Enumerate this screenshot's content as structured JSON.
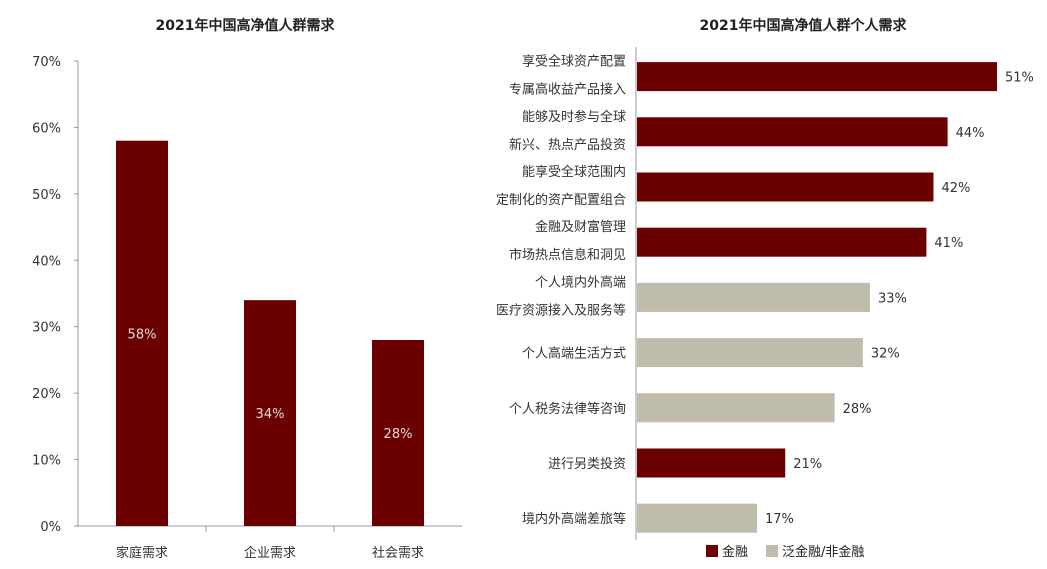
{
  "chart_data": [
    {
      "type": "bar",
      "title": "2021年中国高净值人群需求",
      "categories": [
        "家庭需求",
        "企业需求",
        "社会需求"
      ],
      "values": [
        58,
        34,
        28
      ],
      "value_labels": [
        "58%",
        "34%",
        "28%"
      ],
      "ylim": [
        0,
        70
      ],
      "yticks": [
        "0%",
        "10%",
        "20%",
        "30%",
        "40%",
        "50%",
        "60%",
        "70%"
      ],
      "xlabel": "",
      "ylabel": "",
      "grid": false
    },
    {
      "type": "bar",
      "orientation": "horizontal",
      "title": "2021年中国高净值人群个人需求",
      "categories": [
        [
          "享受全球资产配置",
          "专属高收益产品接入"
        ],
        [
          "能够及时参与全球",
          "新兴、热点产品投资"
        ],
        [
          "能享受全球范围内",
          "定制化的资产配置组合"
        ],
        [
          "金融及财富管理",
          "市场热点信息和洞见"
        ],
        [
          "个人境内外高端",
          "医疗资源接入及服务等"
        ],
        [
          "个人高端生活方式"
        ],
        [
          "个人税务法律等咨询"
        ],
        [
          "进行另类投资"
        ],
        [
          "境内外高端差旅等"
        ]
      ],
      "values": [
        51,
        44,
        42,
        41,
        33,
        32,
        28,
        21,
        17
      ],
      "value_labels": [
        "51%",
        "44%",
        "42%",
        "41%",
        "33%",
        "32%",
        "28%",
        "21%",
        "17%"
      ],
      "groups": [
        "金融",
        "金融",
        "金融",
        "金融",
        "泛金融/非金融",
        "泛金融/非金融",
        "泛金融/非金融",
        "金融",
        "泛金融/非金融"
      ],
      "xlim": [
        0,
        55
      ],
      "legend_position": "bottom",
      "series": [
        {
          "name": "金融",
          "color": "#6b0000"
        },
        {
          "name": "泛金融/非金融",
          "color": "#bfbcac"
        }
      ]
    }
  ],
  "colors": {
    "finance": "#6b0000",
    "non_finance": "#bfbcac",
    "bar_left": "#6b0000"
  },
  "legend": {
    "finance_label": "金融",
    "non_finance_label": "泛金融/非金融"
  }
}
